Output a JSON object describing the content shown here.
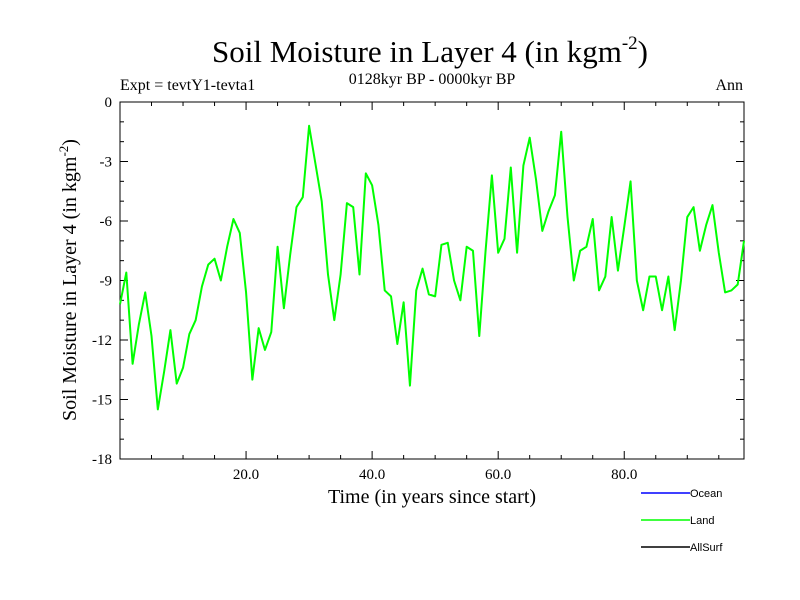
{
  "chart_data": {
    "type": "line",
    "title": "Soil Moisture in Layer 4 (in kgm",
    "title_superscript": "-2",
    "title_close": ")",
    "subtitle_left": "Expt = tevtY1-tevta1",
    "subtitle_center": "0128kyr BP - 0000kyr BP",
    "subtitle_right": "Ann",
    "xlabel": "Time (in years since start)",
    "ylabel": "Soil Moisture in Layer 4 (in kgm",
    "ylabel_superscript": "-2",
    "ylabel_close": ")",
    "xlim": [
      0,
      99
    ],
    "ylim": [
      -18,
      0
    ],
    "xticks": [
      20,
      40,
      60,
      80
    ],
    "xtick_labels": [
      "20.0",
      "40.0",
      "60.0",
      "80.0"
    ],
    "yticks": [
      0,
      -3,
      -6,
      -9,
      -12,
      -15,
      -18
    ],
    "ytick_labels": [
      "0",
      "-3",
      "-6",
      "-9",
      "-12",
      "-15",
      "-18"
    ],
    "series": [
      {
        "name": "Ocean",
        "color": "#0000ff",
        "values": []
      },
      {
        "name": "Land",
        "color": "#00ff00",
        "x": [
          0,
          1,
          2,
          3,
          4,
          5,
          6,
          7,
          8,
          9,
          10,
          11,
          12,
          13,
          14,
          15,
          16,
          17,
          18,
          19,
          20,
          21,
          22,
          23,
          24,
          25,
          26,
          27,
          28,
          29,
          30,
          31,
          32,
          33,
          34,
          35,
          36,
          37,
          38,
          39,
          40,
          41,
          42,
          43,
          44,
          45,
          46,
          47,
          48,
          49,
          50,
          51,
          52,
          53,
          54,
          55,
          56,
          57,
          58,
          59,
          60,
          61,
          62,
          63,
          64,
          65,
          66,
          67,
          68,
          69,
          70,
          71,
          72,
          73,
          74,
          75,
          76,
          77,
          78,
          79,
          80,
          81,
          82,
          83,
          84,
          85,
          86,
          87,
          88,
          89,
          90,
          91,
          92,
          93,
          94,
          95,
          96,
          97,
          98,
          99
        ],
        "values": [
          -10.2,
          -8.6,
          -13.2,
          -11.2,
          -9.6,
          -11.8,
          -15.5,
          -13.6,
          -11.5,
          -14.2,
          -13.4,
          -11.7,
          -11.0,
          -9.3,
          -8.2,
          -7.9,
          -9.0,
          -7.3,
          -5.9,
          -6.6,
          -9.6,
          -14.0,
          -11.4,
          -12.5,
          -11.6,
          -7.3,
          -10.4,
          -7.7,
          -5.3,
          -4.8,
          -1.2,
          -3.1,
          -5.0,
          -8.7,
          -11.0,
          -8.7,
          -5.1,
          -5.3,
          -8.7,
          -3.6,
          -4.2,
          -6.2,
          -9.5,
          -9.8,
          -12.2,
          -10.1,
          -14.3,
          -9.5,
          -8.4,
          -9.7,
          -9.8,
          -7.2,
          -7.1,
          -9.0,
          -10.0,
          -7.3,
          -7.5,
          -11.8,
          -7.5,
          -3.7,
          -7.6,
          -6.9,
          -3.3,
          -7.6,
          -3.2,
          -1.8,
          -3.9,
          -6.5,
          -5.5,
          -4.7,
          -1.5,
          -5.8,
          -9.0,
          -7.5,
          -7.3,
          -5.9,
          -9.5,
          -8.8,
          -5.8,
          -8.5,
          -6.3,
          -4.0,
          -9.0,
          -10.5,
          -8.8,
          -8.8,
          -10.5,
          -8.8,
          -11.5,
          -9.0,
          -5.8,
          -5.3,
          -7.5,
          -6.2,
          -5.2,
          -7.6,
          -9.6,
          -9.5,
          -9.2,
          -7.0
        ]
      },
      {
        "name": "AllSurf",
        "color": "#000000",
        "values": []
      }
    ],
    "legend_position": "bottom-right"
  }
}
